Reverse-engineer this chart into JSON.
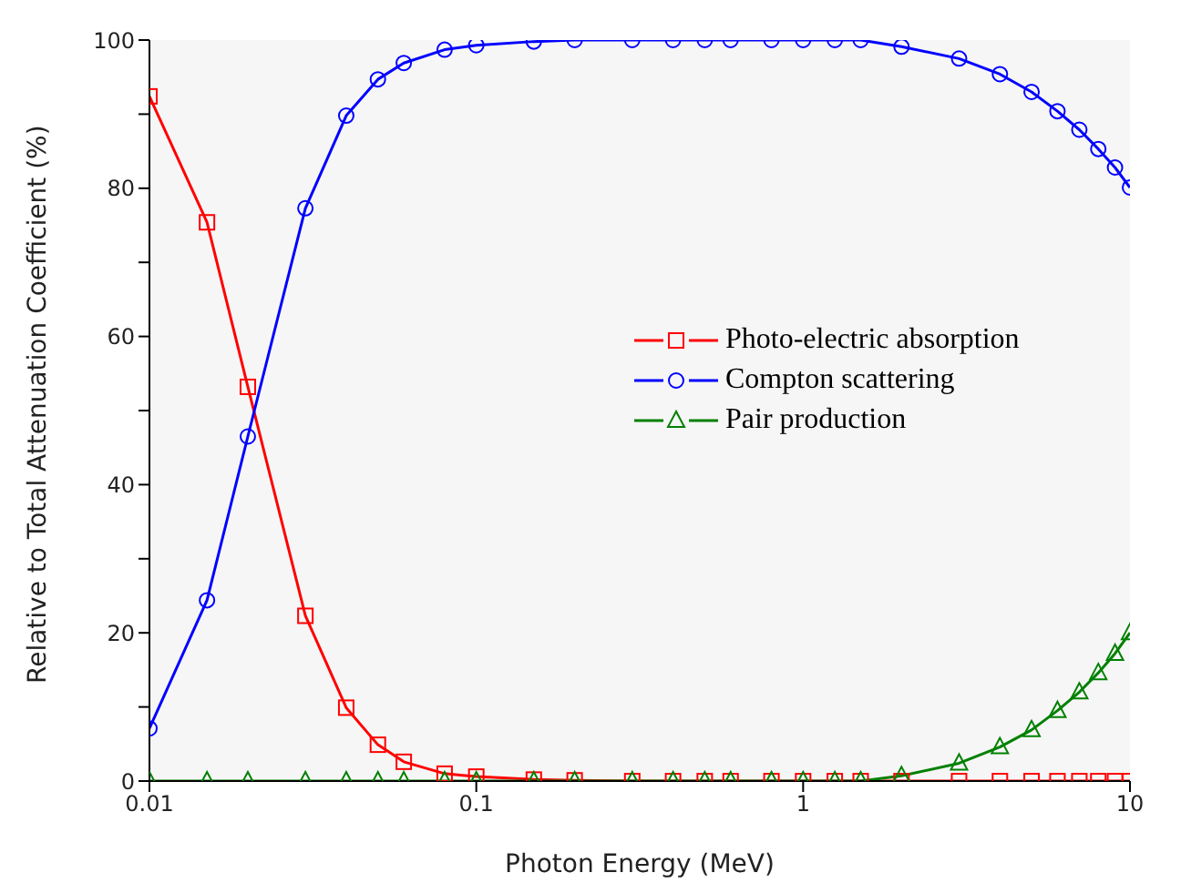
{
  "chart_data": {
    "type": "line",
    "xlabel": "Photon Energy (MeV)",
    "ylabel": "Relative to Total Attenuation Coefficient (%)",
    "x": [
      0.01,
      0.015,
      0.02,
      0.03,
      0.04,
      0.05,
      0.06,
      0.08,
      0.1,
      0.15,
      0.2,
      0.3,
      0.4,
      0.5,
      0.6,
      0.8,
      1,
      1.25,
      1.5,
      2,
      3,
      4,
      5,
      6,
      7,
      8,
      9,
      10
    ],
    "series": [
      {
        "name": "Photo-electric absorption",
        "color": "#ff0000",
        "marker": "square",
        "values": [
          92.4,
          75.4,
          53.2,
          22.3,
          9.9,
          4.9,
          2.6,
          1.0,
          0.6,
          0.2,
          0.1,
          0,
          0,
          0,
          0,
          0,
          0,
          0,
          0,
          0,
          0,
          0,
          0,
          0,
          0,
          0,
          0,
          0
        ]
      },
      {
        "name": "Compton scattering",
        "color": "#0000ff",
        "marker": "circle",
        "values": [
          7.1,
          24.4,
          46.5,
          77.3,
          89.8,
          94.7,
          96.9,
          98.7,
          99.3,
          99.8,
          100,
          100,
          100,
          100,
          100,
          100,
          100,
          100,
          100,
          99.1,
          97.5,
          95.4,
          93.0,
          90.4,
          87.9,
          85.3,
          82.8,
          80.1
        ]
      },
      {
        "name": "Pair production",
        "color": "#008000",
        "marker": "triangle",
        "values": [
          0,
          0,
          0,
          0,
          0,
          0,
          0,
          0,
          0,
          0,
          0,
          0,
          0,
          0,
          0,
          0,
          0,
          0,
          0,
          0.7,
          2.4,
          4.6,
          6.9,
          9.5,
          12.0,
          14.6,
          17.2,
          20.0
        ]
      }
    ],
    "log": "x",
    "xlim": [
      0.01,
      10
    ],
    "xticks": [
      0.01,
      0.1,
      1,
      10
    ],
    "ylim": [
      0,
      100
    ],
    "yticks": [
      0,
      {
        "value": 10,
        "label": null
      },
      20,
      {
        "value": 30,
        "label": null
      },
      40,
      {
        "value": 50,
        "label": null
      },
      60,
      {
        "value": 70,
        "label": null
      },
      80,
      {
        "value": 90,
        "label": null
      },
      100
    ],
    "grid": false,
    "legend": "right",
    "line_style": "solid"
  }
}
